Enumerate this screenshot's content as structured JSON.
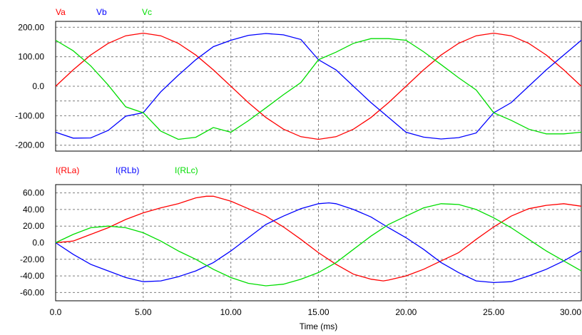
{
  "chart_data": [
    {
      "type": "line",
      "title": "",
      "xlabel": "",
      "ylabel": "",
      "xlim": [
        0,
        30
      ],
      "ylim": [
        -220,
        220
      ],
      "yticks": [
        200,
        100,
        0,
        -100,
        -200
      ],
      "ytick_labels": [
        "200.00",
        "100.00",
        "0.0",
        "-100.00",
        "-200.00"
      ],
      "grid": true,
      "legend_position": "top-left",
      "series": [
        {
          "name": "Va",
          "color": "#ff0000",
          "x": [
            0,
            1,
            2,
            3,
            4,
            5,
            6,
            7,
            8,
            9,
            10,
            11,
            12,
            13,
            14,
            15,
            16,
            17,
            18,
            19,
            20,
            21,
            22,
            23,
            24,
            25,
            26,
            27,
            28,
            29,
            30
          ],
          "y": [
            0,
            55.6,
            105.8,
            145.6,
            171.2,
            180,
            171.2,
            145.6,
            105.8,
            55.6,
            0,
            -55.6,
            -105.8,
            -145.6,
            -171.2,
            -180,
            -171.2,
            -145.6,
            -105.8,
            -55.6,
            0,
            55.6,
            105.8,
            145.6,
            171.2,
            180,
            171.2,
            145.6,
            105.8,
            55.6,
            0
          ]
        },
        {
          "name": "Vb",
          "color": "#0000ff",
          "x": [
            0,
            1,
            2,
            3,
            4,
            5,
            6,
            7,
            8,
            9,
            10,
            11,
            12,
            13,
            14,
            15,
            16,
            17,
            18,
            19,
            20,
            21,
            22,
            23,
            24,
            25,
            26,
            27,
            28,
            29,
            30
          ],
          "y": [
            -155.9,
            -176.1,
            -175.3,
            -149.8,
            -101.5,
            -90,
            -18.8,
            37.4,
            90,
            134.1,
            155.9,
            172.6,
            179.0,
            174.3,
            158.7,
            90,
            55.6,
            0,
            -55.6,
            -105.8,
            -155.9,
            -172.6,
            -179.0,
            -174.3,
            -158.7,
            -90,
            -55.6,
            0,
            55.6,
            105.8,
            155.9
          ]
        },
        {
          "name": "Vc",
          "color": "#00dd00",
          "x": [
            0,
            1,
            2,
            3,
            4,
            5,
            6,
            7,
            8,
            9,
            10,
            11,
            12,
            13,
            14,
            15,
            16,
            17,
            18,
            19,
            20,
            21,
            22,
            23,
            24,
            25,
            26,
            27,
            28,
            29,
            30
          ],
          "y": [
            155.9,
            120.5,
            69.5,
            4.2,
            -69.8,
            -90,
            -152.4,
            -180,
            -173.1,
            -140,
            -155.9,
            -117,
            -73.2,
            -28.7,
            12.5,
            90,
            115.6,
            145.6,
            161.4,
            161.4,
            155.9,
            117,
            73.2,
            28.7,
            -12.5,
            -90,
            -115.6,
            -145.6,
            -161.4,
            -161.4,
            -155.9
          ]
        }
      ]
    },
    {
      "type": "line",
      "title": "",
      "xlabel": "Time (ms)",
      "ylabel": "",
      "xlim": [
        0,
        30
      ],
      "ylim": [
        -70,
        70
      ],
      "yticks": [
        60,
        40,
        20,
        0,
        -20,
        -40,
        -60
      ],
      "ytick_labels": [
        "60.00",
        "40.00",
        "20.00",
        "0.0",
        "-20.00",
        "-40.00",
        "-60.00"
      ],
      "xticks": [
        0,
        5,
        10,
        15,
        20,
        25,
        30
      ],
      "xtick_labels": [
        "0.0",
        "5.00",
        "10.00",
        "15.00",
        "20.00",
        "25.00",
        "30.00"
      ],
      "grid": true,
      "legend_position": "top-left",
      "series": [
        {
          "name": "I(RLa)",
          "color": "#ff0000",
          "x": [
            0,
            1,
            2,
            3,
            4,
            5,
            6,
            7,
            8,
            8.6,
            9,
            10,
            11,
            12,
            13,
            14,
            15,
            16,
            17,
            18,
            18.7,
            19,
            20,
            21,
            22,
            23,
            24,
            25,
            26,
            27,
            28,
            29,
            30
          ],
          "y": [
            0,
            2,
            10,
            18,
            28,
            36,
            42,
            47,
            54,
            56,
            56,
            50,
            41,
            32,
            19,
            4,
            -12,
            -26,
            -38,
            -44,
            -46,
            -45,
            -40,
            -32,
            -22,
            -12,
            4,
            19,
            32,
            41,
            45,
            47,
            44
          ]
        },
        {
          "name": "I(RLb)",
          "color": "#0000ff",
          "x": [
            0,
            1,
            2,
            3,
            4,
            5,
            6,
            7,
            8,
            9,
            10,
            11,
            12,
            13,
            14,
            15,
            15.6,
            16,
            17,
            18,
            19,
            20,
            21,
            22,
            23,
            24,
            25,
            26,
            27,
            28,
            29,
            30
          ],
          "y": [
            0,
            -14,
            -26,
            -34,
            -42,
            -47,
            -46,
            -41,
            -34,
            -24,
            -10,
            6,
            22,
            32,
            41,
            47,
            48,
            47,
            40,
            31,
            18,
            6,
            -8,
            -24,
            -36,
            -46,
            -48,
            -47,
            -40,
            -32,
            -22,
            -10
          ]
        },
        {
          "name": "I(RLc)",
          "color": "#00dd00",
          "x": [
            0,
            1,
            2,
            3,
            4,
            5,
            6,
            7,
            8,
            9,
            10,
            11,
            12,
            13,
            14,
            15,
            16,
            17,
            18,
            19,
            20,
            21,
            22,
            23,
            24,
            25,
            26,
            27,
            28,
            29,
            30
          ],
          "y": [
            0,
            10,
            18,
            20,
            18,
            12,
            2,
            -10,
            -20,
            -32,
            -42,
            -49,
            -52,
            -50,
            -44,
            -36,
            -24,
            -8,
            8,
            22,
            32,
            42,
            47,
            46,
            40,
            30,
            18,
            4,
            -10,
            -22,
            -34
          ]
        }
      ]
    }
  ]
}
